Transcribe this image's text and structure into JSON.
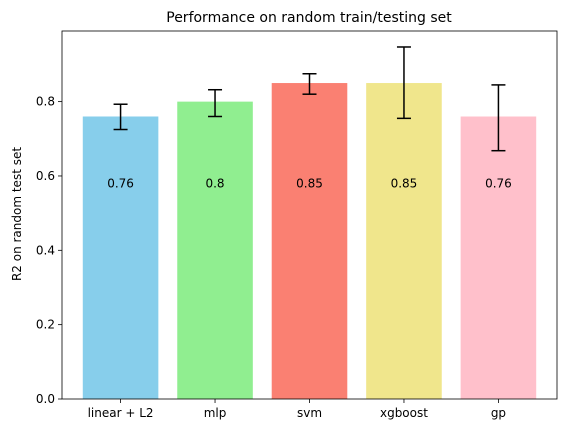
{
  "chart_data": {
    "type": "bar",
    "title": "Performance on random train/testing set",
    "xlabel": "",
    "ylabel": "R2 on random test set",
    "categories": [
      "linear + L2",
      "mlp",
      "svm",
      "xgboost",
      "gp"
    ],
    "values": [
      0.76,
      0.8,
      0.85,
      0.85,
      0.76
    ],
    "error_low": [
      0.725,
      0.76,
      0.82,
      0.755,
      0.668
    ],
    "error_high": [
      0.793,
      0.832,
      0.875,
      0.947,
      0.845
    ],
    "data_labels": [
      "0.76",
      "0.8",
      "0.85",
      "0.85",
      "0.76"
    ],
    "label_y": 0.58,
    "colors": [
      "#87CEEB",
      "#90EE90",
      "#FA8072",
      "#F0E68C",
      "#FFC0CB"
    ],
    "ylim": [
      0,
      0.99
    ],
    "yticks": [
      0.0,
      0.2,
      0.4,
      0.6,
      0.8
    ],
    "ytick_labels": [
      "0.0",
      "0.2",
      "0.4",
      "0.6",
      "0.8"
    ],
    "grid": false,
    "legend": "none"
  }
}
